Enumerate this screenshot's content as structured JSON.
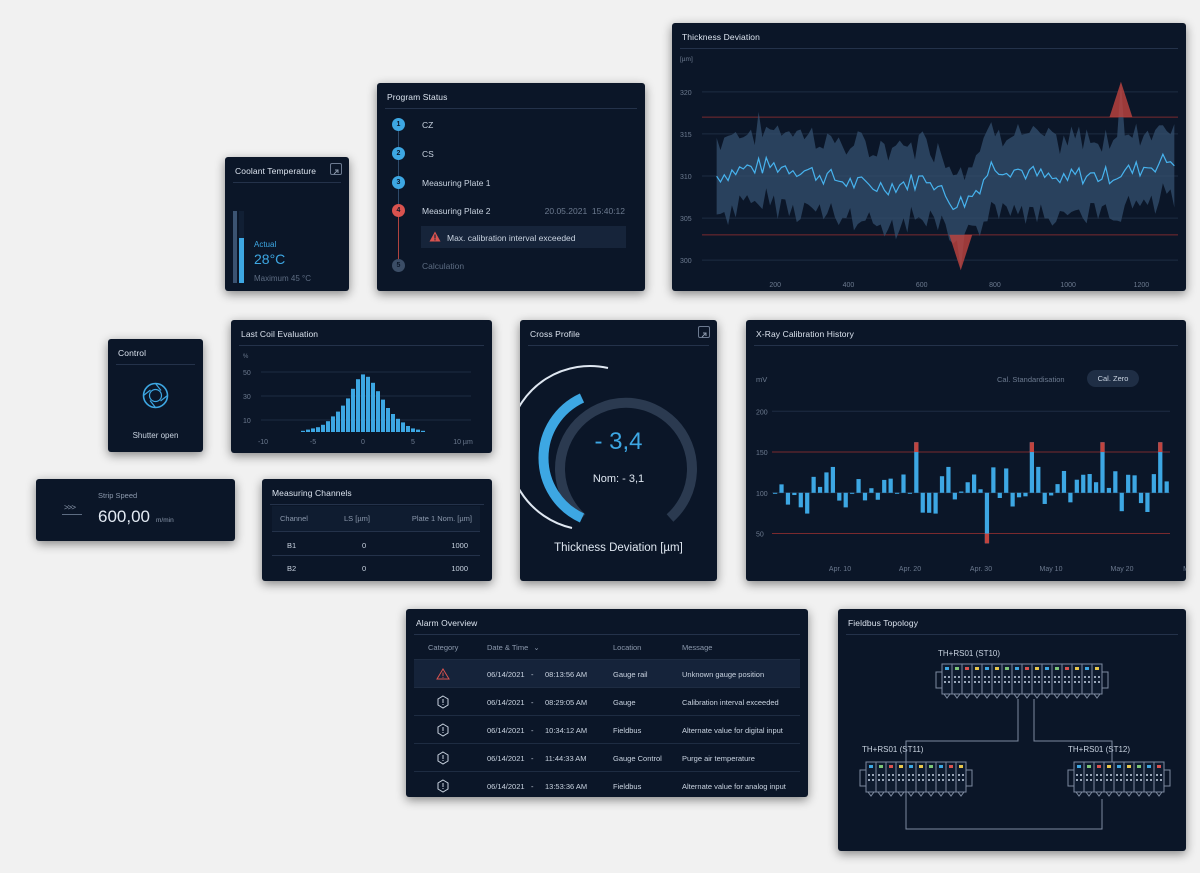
{
  "coolant": {
    "title": "Coolant Temperature",
    "label": "Actual",
    "value": "28°C",
    "max": "Maximum 45 °C",
    "level": 0.62
  },
  "program": {
    "title": "Program Status",
    "steps": [
      {
        "num": "1",
        "label": "CZ",
        "state": "done"
      },
      {
        "num": "2",
        "label": "CS",
        "state": "done"
      },
      {
        "num": "3",
        "label": "Measuring Plate 1",
        "state": "done"
      },
      {
        "num": "4",
        "label": "Measuring Plate 2",
        "state": "error",
        "time": "20.05.2021  15:40:12"
      },
      {
        "num": "5",
        "label": "Calculation",
        "state": "pending"
      }
    ],
    "alert": "Max. calibration interval exceeded"
  },
  "thickness": {
    "title": "Thickness Deviation",
    "unit": "[µm]",
    "y_ticks": [
      "320",
      "315",
      "310",
      "305",
      "300"
    ],
    "x_ticks": [
      "200",
      "400",
      "600",
      "800",
      "1000",
      "1200"
    ]
  },
  "control": {
    "title": "Control",
    "status": "Shutter open"
  },
  "coil": {
    "title": "Last Coil Evaluation",
    "unit": "%",
    "y_ticks": [
      "50",
      "30",
      "10"
    ],
    "x_ticks": [
      "-10",
      "-5",
      "0",
      "5",
      "10 µm"
    ]
  },
  "cross": {
    "title": "Cross Profile",
    "value": "- 3,4",
    "nominal": "Nom: - 3,1",
    "caption": "Thickness Deviation [µm]"
  },
  "xray": {
    "title": "X-Ray Calibration History",
    "unit": "mV",
    "tab_standard": "Cal. Standardisation",
    "tab_zero": "Cal. Zero",
    "y_ticks": [
      "200",
      "150",
      "100",
      "50"
    ],
    "x_ticks": [
      "Apr. 10",
      "Apr. 20",
      "Apr. 30",
      "May 10",
      "May 20",
      "M"
    ]
  },
  "strip": {
    "label": "Strip Speed",
    "value": "600,00",
    "unit": "m/min",
    "icon": ">>>"
  },
  "channels": {
    "title": "Measuring Channels",
    "headers": [
      "Channel",
      "LS [µm]",
      "Plate 1 Nom. [µm]"
    ],
    "rows": [
      [
        "B1",
        "0",
        "1000"
      ],
      [
        "B2",
        "0",
        "1000"
      ]
    ]
  },
  "alarms": {
    "title": "Alarm Overview",
    "headers": [
      "Category",
      "Date & Time",
      "Location",
      "Message"
    ],
    "sort_icon": "⌄",
    "rows": [
      {
        "cat": "warning",
        "date": "06/14/2021",
        "time": "08:13:56 AM",
        "loc": "Gauge rail",
        "msg": "Unknown gauge position"
      },
      {
        "cat": "info",
        "date": "06/14/2021",
        "time": "08:29:05 AM",
        "loc": "Gauge",
        "msg": "Calibration interval exceeded"
      },
      {
        "cat": "info",
        "date": "06/14/2021",
        "time": "10:34:12 AM",
        "loc": "Fieldbus",
        "msg": "Alternate value for digital input"
      },
      {
        "cat": "info",
        "date": "06/14/2021",
        "time": "11:44:33 AM",
        "loc": "Gauge Control",
        "msg": "Purge air temperature"
      },
      {
        "cat": "info",
        "date": "06/14/2021",
        "time": "13:53:36 AM",
        "loc": "Fieldbus",
        "msg": "Alternate value for analog input"
      }
    ]
  },
  "fieldbus": {
    "title": "Fieldbus Topology",
    "nodes": [
      "TH+RS01 (ST10)",
      "TH+RS01 (ST11)",
      "TH+RS01 (ST12)"
    ]
  },
  "colors": {
    "accent": "#3da7e3",
    "error": "#d9534f",
    "panel": "#0b1628"
  }
}
